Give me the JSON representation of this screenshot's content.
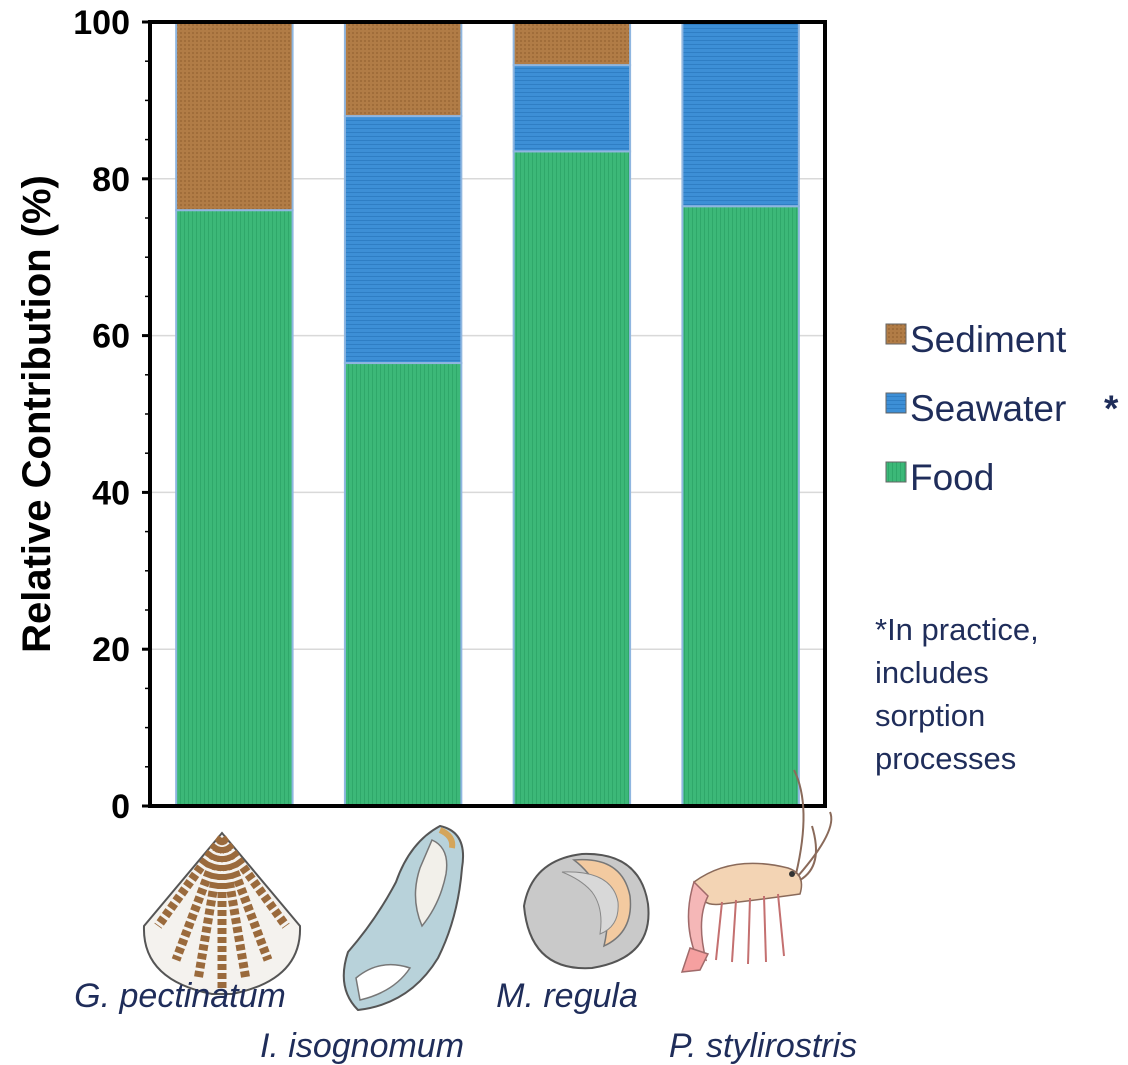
{
  "chart_data": {
    "type": "bar",
    "stacked": true,
    "categories": [
      "G. pectinatum",
      "I. isognomum",
      "M. regula",
      "P. stylirostris"
    ],
    "series": [
      {
        "name": "Food",
        "color": "#3cb878",
        "values": [
          76,
          56.5,
          83.5,
          76.5
        ]
      },
      {
        "name": "Seawater",
        "color": "#3d8fd6",
        "values": [
          0,
          31.5,
          11,
          23.5
        ]
      },
      {
        "name": "Sediment",
        "color": "#b17c46",
        "values": [
          24,
          12,
          5.5,
          0
        ]
      }
    ],
    "legend": [
      {
        "label": "Sediment",
        "color": "#b17c46"
      },
      {
        "label": "Seawater",
        "color": "#3d8fd6",
        "marker": "*"
      },
      {
        "label": "Food",
        "color": "#3cb878"
      }
    ],
    "legend_position": "right",
    "ylabel": "Relative Contribution (%)",
    "xlabel": "",
    "ylim": [
      0,
      100
    ],
    "yticks": [
      0,
      20,
      40,
      60,
      80,
      100
    ],
    "grid": true,
    "note": [
      "*In practice,",
      "includes",
      "sorption",
      "processes"
    ],
    "illustrations": [
      "scallop-icon",
      "oyster-icon",
      "clam-icon",
      "shrimp-icon"
    ]
  }
}
